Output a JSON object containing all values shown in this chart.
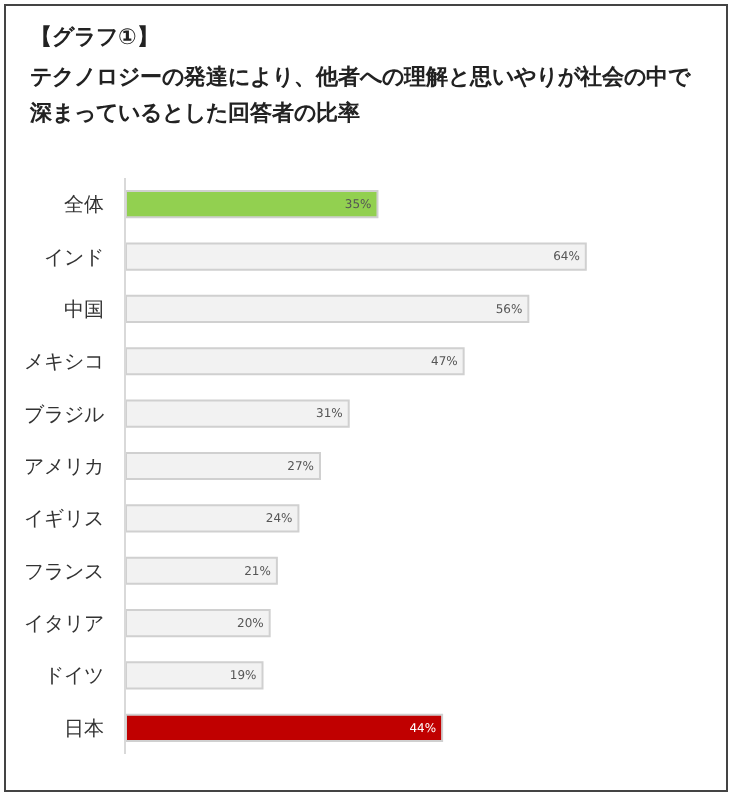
{
  "chart_data": {
    "type": "bar",
    "orientation": "horizontal",
    "title": "【グラフ①】",
    "subtitle": "テクノロジーの発達により、他者への理解と思いやりが社会の中で深まっているとした回答者の比率",
    "categories": [
      "全体",
      "インド",
      "中国",
      "メキシコ",
      "ブラジル",
      "アメリカ",
      "イギリス",
      "フランス",
      "イタリア",
      "ドイツ",
      "日本"
    ],
    "values": [
      35,
      64,
      56,
      47,
      31,
      27,
      24,
      21,
      20,
      19,
      44
    ],
    "value_labels": [
      "35%",
      "64%",
      "56%",
      "47%",
      "31%",
      "27%",
      "24%",
      "21%",
      "20%",
      "19%",
      "44%"
    ],
    "colors": [
      "#92d050",
      "#f2f2f2",
      "#f2f2f2",
      "#f2f2f2",
      "#f2f2f2",
      "#f2f2f2",
      "#f2f2f2",
      "#f2f2f2",
      "#f2f2f2",
      "#f2f2f2",
      "#c00000"
    ]
  }
}
